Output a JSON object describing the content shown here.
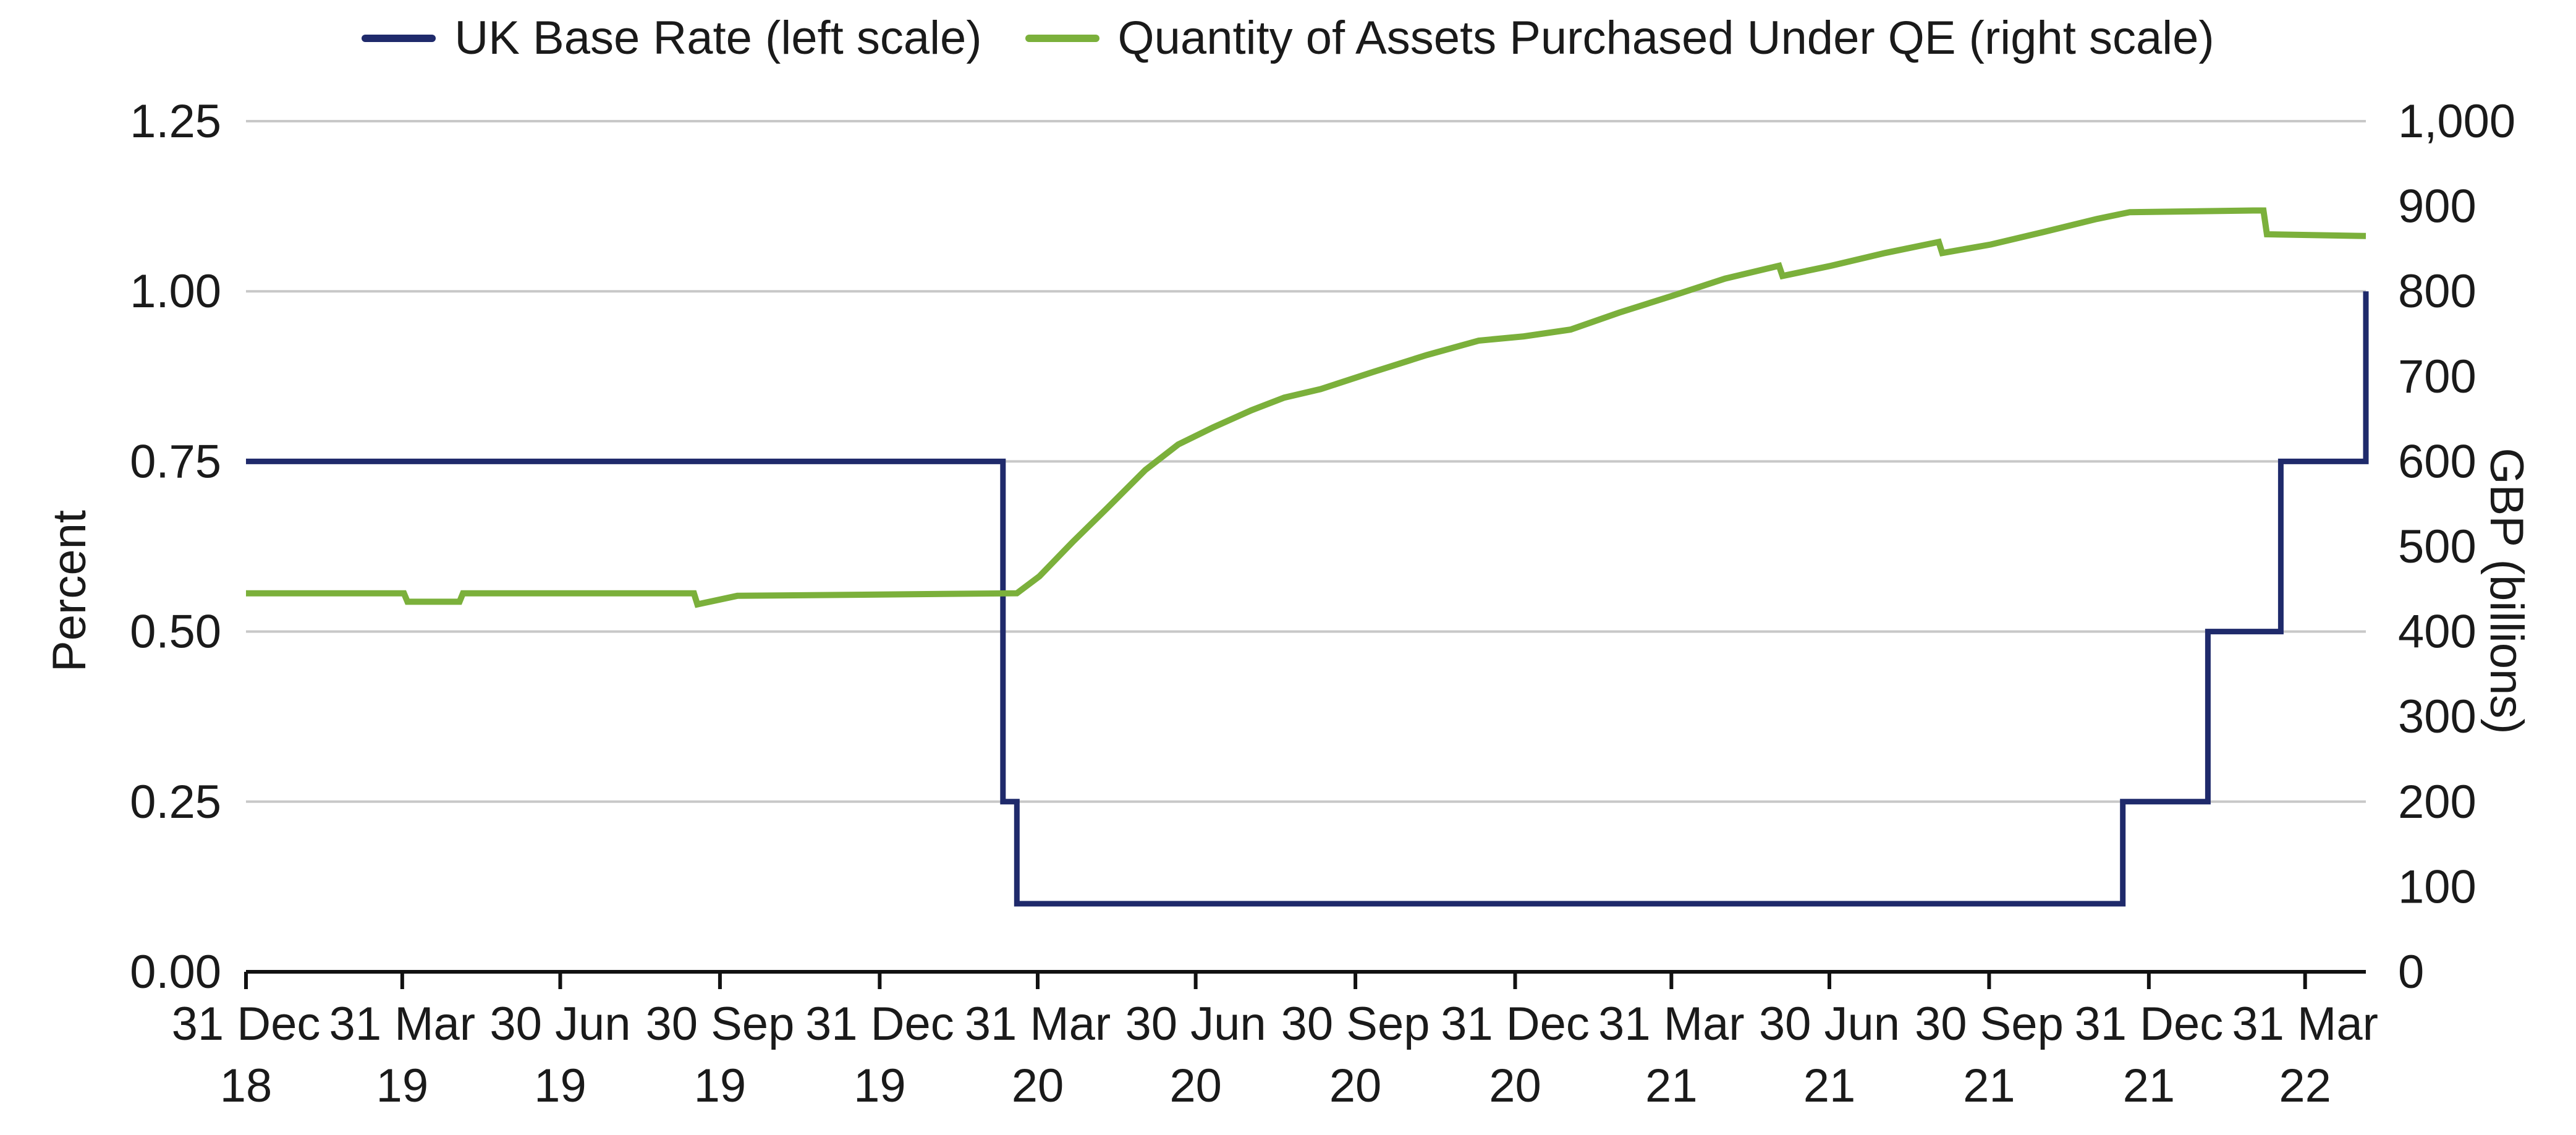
{
  "chart_data": {
    "type": "line",
    "legend_position": "top-center",
    "grid": true,
    "x": {
      "range": [
        "2018-12-31",
        "2022-05-05"
      ],
      "ticks": [
        {
          "date": "2018-12-31",
          "line1": "31 Dec",
          "line2": "18"
        },
        {
          "date": "2019-03-31",
          "line1": "31 Mar",
          "line2": "19"
        },
        {
          "date": "2019-06-30",
          "line1": "30 Jun",
          "line2": "19"
        },
        {
          "date": "2019-09-30",
          "line1": "30 Sep",
          "line2": "19"
        },
        {
          "date": "2019-12-31",
          "line1": "31 Dec",
          "line2": "19"
        },
        {
          "date": "2020-03-31",
          "line1": "31 Mar",
          "line2": "20"
        },
        {
          "date": "2020-06-30",
          "line1": "30 Jun",
          "line2": "20"
        },
        {
          "date": "2020-09-30",
          "line1": "30 Sep",
          "line2": "20"
        },
        {
          "date": "2020-12-31",
          "line1": "31 Dec",
          "line2": "20"
        },
        {
          "date": "2021-03-31",
          "line1": "31 Mar",
          "line2": "21"
        },
        {
          "date": "2021-06-30",
          "line1": "30 Jun",
          "line2": "21"
        },
        {
          "date": "2021-09-30",
          "line1": "30 Sep",
          "line2": "21"
        },
        {
          "date": "2021-12-31",
          "line1": "31 Dec",
          "line2": "21"
        },
        {
          "date": "2022-03-31",
          "line1": "31 Mar",
          "line2": "22"
        }
      ]
    },
    "y_left": {
      "label": "Percent",
      "range": [
        0,
        1.25
      ],
      "ticks": [
        {
          "value": 0,
          "label": "0.00"
        },
        {
          "value": 0.25,
          "label": "0.25"
        },
        {
          "value": 0.5,
          "label": "0.50"
        },
        {
          "value": 0.75,
          "label": "0.75"
        },
        {
          "value": 1.0,
          "label": "1.00"
        },
        {
          "value": 1.25,
          "label": "1.25"
        }
      ]
    },
    "y_right": {
      "label": "GBP (billions)",
      "range": [
        0,
        1000
      ],
      "ticks": [
        {
          "value": 0,
          "label": "0"
        },
        {
          "value": 100,
          "label": "100"
        },
        {
          "value": 200,
          "label": "200"
        },
        {
          "value": 300,
          "label": "300"
        },
        {
          "value": 400,
          "label": "400"
        },
        {
          "value": 500,
          "label": "500"
        },
        {
          "value": 600,
          "label": "600"
        },
        {
          "value": 700,
          "label": "700"
        },
        {
          "value": 800,
          "label": "800"
        },
        {
          "value": 900,
          "label": "900"
        },
        {
          "value": 1000,
          "label": "1,000"
        }
      ]
    },
    "series": [
      {
        "name": "UK Base Rate (left scale)",
        "axis": "left",
        "color": "#1f2a6b",
        "step": true,
        "points": [
          [
            "2018-12-31",
            0.75
          ],
          [
            "2020-03-11",
            0.25
          ],
          [
            "2020-03-19",
            0.1
          ],
          [
            "2021-12-16",
            0.25
          ],
          [
            "2022-02-03",
            0.5
          ],
          [
            "2022-03-17",
            0.75
          ],
          [
            "2022-05-05",
            1.0
          ]
        ]
      },
      {
        "name": "Quantity of Assets Purchased Under QE (right scale)",
        "axis": "right",
        "color": "#7bb03b",
        "step": false,
        "points": [
          [
            "2018-12-31",
            445
          ],
          [
            "2019-04-01",
            445
          ],
          [
            "2019-04-03",
            435
          ],
          [
            "2019-05-03",
            435
          ],
          [
            "2019-05-05",
            445
          ],
          [
            "2019-09-15",
            445
          ],
          [
            "2019-09-17",
            432
          ],
          [
            "2019-10-10",
            442
          ],
          [
            "2020-03-19",
            445
          ],
          [
            "2020-04-01",
            465
          ],
          [
            "2020-04-20",
            505
          ],
          [
            "2020-05-10",
            545
          ],
          [
            "2020-06-01",
            590
          ],
          [
            "2020-06-20",
            620
          ],
          [
            "2020-07-10",
            640
          ],
          [
            "2020-08-01",
            660
          ],
          [
            "2020-08-20",
            675
          ],
          [
            "2020-09-10",
            685
          ],
          [
            "2020-10-10",
            705
          ],
          [
            "2020-11-10",
            725
          ],
          [
            "2020-12-10",
            742
          ],
          [
            "2021-01-05",
            747
          ],
          [
            "2021-02-01",
            755
          ],
          [
            "2021-03-01",
            775
          ],
          [
            "2021-04-01",
            795
          ],
          [
            "2021-05-01",
            815
          ],
          [
            "2021-06-01",
            830
          ],
          [
            "2021-06-03",
            818
          ],
          [
            "2021-07-01",
            830
          ],
          [
            "2021-08-01",
            845
          ],
          [
            "2021-09-01",
            858
          ],
          [
            "2021-09-03",
            845
          ],
          [
            "2021-10-01",
            855
          ],
          [
            "2021-11-01",
            870
          ],
          [
            "2021-12-01",
            885
          ],
          [
            "2021-12-20",
            893
          ],
          [
            "2022-03-01",
            895
          ],
          [
            "2022-03-07",
            895
          ],
          [
            "2022-03-09",
            867
          ],
          [
            "2022-05-05",
            865
          ]
        ]
      }
    ]
  }
}
